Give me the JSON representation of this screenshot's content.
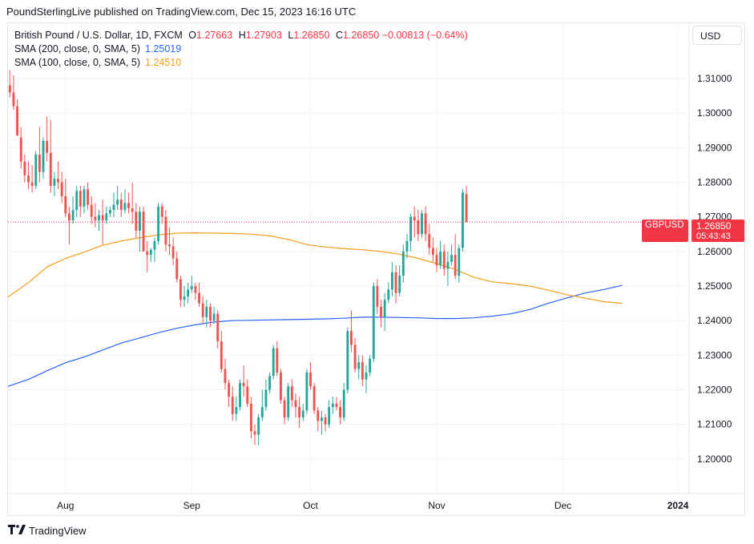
{
  "header": {
    "credit": "PoundSterlingLive published on TradingView.com, Dec 15, 2023 16:16 UTC"
  },
  "legend": {
    "symbol": "British Pound / U.S. Dollar, 1D, FXCM",
    "open_k": "O",
    "open": "1.27663",
    "high_k": "H",
    "high": "1.27903",
    "low_k": "L",
    "low": "1.26850",
    "close_k": "C",
    "close": "1.26850",
    "change": "−0.00813 (−0.64%)",
    "sma200_label": "SMA (200, close, 0, SMA, 5)",
    "sma200_value": "1.25019",
    "sma100_label": "SMA (100, close, 0, SMA, 5)",
    "sma100_value": "1.24510"
  },
  "currency_button": "USD",
  "price_tag": {
    "symbol": "GBPUSD",
    "price": "1.26850",
    "countdown": "05:43:43"
  },
  "footer": {
    "brand": "TradingView",
    "icon": "tradingview-logo-icon"
  },
  "colors": {
    "up": "#26a69a",
    "down": "#ef5350",
    "sma200": "#2962ff",
    "sma100": "#f59c1a",
    "last_price": "#f23645",
    "grid": "#f0f3fa"
  },
  "chart_data": {
    "type": "candlestick",
    "title": "British Pound / U.S. Dollar, 1D, FXCM",
    "ylim": [
      1.19,
      1.326
    ],
    "y_ticks": [
      "1.20000",
      "1.21000",
      "1.22000",
      "1.23000",
      "1.24000",
      "1.25000",
      "1.26000",
      "1.27000",
      "1.28000",
      "1.29000",
      "1.30000",
      "1.31000"
    ],
    "x_ticks": [
      {
        "label": "Aug",
        "index": 15
      },
      {
        "label": "Sep",
        "index": 49
      },
      {
        "label": "Oct",
        "index": 81
      },
      {
        "label": "Nov",
        "index": 115
      },
      {
        "label": "Dec",
        "index": 149
      },
      {
        "label": "2024",
        "index": 180
      }
    ],
    "x_range": [
      -0.5,
      183
    ],
    "last_price": 1.2685,
    "candles": [
      [
        1.308,
        1.3125,
        1.3045,
        1.306
      ],
      [
        1.306,
        1.311,
        1.301,
        1.302
      ],
      [
        1.302,
        1.304,
        1.294,
        1.2935
      ],
      [
        1.293,
        1.296,
        1.284,
        1.286
      ],
      [
        1.286,
        1.288,
        1.28,
        1.282
      ],
      [
        1.282,
        1.286,
        1.278,
        1.28
      ],
      [
        1.28,
        1.285,
        1.277,
        1.279
      ],
      [
        1.279,
        1.289,
        1.278,
        1.288
      ],
      [
        1.288,
        1.296,
        1.28,
        1.283
      ],
      [
        1.283,
        1.293,
        1.281,
        1.292
      ],
      [
        1.292,
        1.299,
        1.286,
        1.2885
      ],
      [
        1.2885,
        1.298,
        1.277,
        1.279
      ],
      [
        1.279,
        1.283,
        1.276,
        1.281
      ],
      [
        1.281,
        1.286,
        1.278,
        1.28
      ],
      [
        1.28,
        1.283,
        1.274,
        1.276
      ],
      [
        1.276,
        1.281,
        1.27,
        1.271
      ],
      [
        1.271,
        1.273,
        1.262,
        1.269
      ],
      [
        1.269,
        1.276,
        1.268,
        1.272
      ],
      [
        1.272,
        1.279,
        1.27,
        1.2775
      ],
      [
        1.2775,
        1.279,
        1.27,
        1.273
      ],
      [
        1.273,
        1.279,
        1.271,
        1.278
      ],
      [
        1.278,
        1.28,
        1.272,
        1.2735
      ],
      [
        1.2735,
        1.276,
        1.268,
        1.27
      ],
      [
        1.27,
        1.274,
        1.267,
        1.269
      ],
      [
        1.269,
        1.272,
        1.266,
        1.2705
      ],
      [
        1.2705,
        1.275,
        1.262,
        1.269
      ],
      [
        1.269,
        1.273,
        1.268,
        1.271
      ],
      [
        1.271,
        1.273,
        1.27,
        1.272
      ],
      [
        1.272,
        1.277,
        1.27,
        1.2735
      ],
      [
        1.2735,
        1.279,
        1.272,
        1.275
      ],
      [
        1.275,
        1.277,
        1.27,
        1.272
      ],
      [
        1.272,
        1.278,
        1.271,
        1.274
      ],
      [
        1.274,
        1.277,
        1.271,
        1.2725
      ],
      [
        1.2725,
        1.28,
        1.268,
        1.2715
      ],
      [
        1.2715,
        1.274,
        1.264,
        1.266
      ],
      [
        1.266,
        1.273,
        1.26,
        1.2715
      ],
      [
        1.2715,
        1.273,
        1.26,
        1.26
      ],
      [
        1.26,
        1.263,
        1.254,
        1.259
      ],
      [
        1.259,
        1.261,
        1.257,
        1.2605
      ],
      [
        1.2605,
        1.264,
        1.257,
        1.263
      ],
      [
        1.263,
        1.274,
        1.262,
        1.273
      ],
      [
        1.273,
        1.274,
        1.268,
        1.27
      ],
      [
        1.27,
        1.272,
        1.26,
        1.262
      ],
      [
        1.262,
        1.267,
        1.259,
        1.2615
      ],
      [
        1.2615,
        1.264,
        1.256,
        1.258
      ],
      [
        1.258,
        1.26,
        1.251,
        1.252
      ],
      [
        1.252,
        1.253,
        1.244,
        1.246
      ],
      [
        1.246,
        1.25,
        1.244,
        1.247
      ],
      [
        1.247,
        1.251,
        1.245,
        1.249
      ],
      [
        1.249,
        1.253,
        1.248,
        1.25
      ],
      [
        1.25,
        1.251,
        1.246,
        1.248
      ],
      [
        1.248,
        1.251,
        1.244,
        1.245
      ],
      [
        1.245,
        1.247,
        1.239,
        1.241
      ],
      [
        1.241,
        1.246,
        1.238,
        1.244
      ],
      [
        1.244,
        1.245,
        1.238,
        1.24
      ],
      [
        1.24,
        1.244,
        1.239,
        1.242
      ],
      [
        1.242,
        1.243,
        1.232,
        1.234
      ],
      [
        1.234,
        1.237,
        1.225,
        1.226
      ],
      [
        1.226,
        1.229,
        1.22,
        1.222
      ],
      [
        1.222,
        1.223,
        1.215,
        1.218
      ],
      [
        1.218,
        1.221,
        1.211,
        1.213
      ],
      [
        1.213,
        1.218,
        1.211,
        1.215
      ],
      [
        1.215,
        1.223,
        1.214,
        1.222
      ],
      [
        1.222,
        1.227,
        1.218,
        1.221
      ],
      [
        1.221,
        1.223,
        1.215,
        1.216
      ],
      [
        1.216,
        1.218,
        1.206,
        1.208
      ],
      [
        1.208,
        1.21,
        1.204,
        1.207
      ],
      [
        1.207,
        1.213,
        1.204,
        1.212
      ],
      [
        1.212,
        1.22,
        1.211,
        1.215
      ],
      [
        1.215,
        1.223,
        1.214,
        1.22
      ],
      [
        1.22,
        1.225,
        1.219,
        1.224
      ],
      [
        1.224,
        1.233,
        1.223,
        1.232
      ],
      [
        1.232,
        1.234,
        1.224,
        1.225
      ],
      [
        1.225,
        1.226,
        1.216,
        1.217
      ],
      [
        1.217,
        1.218,
        1.21,
        1.212
      ],
      [
        1.212,
        1.222,
        1.211,
        1.221
      ],
      [
        1.221,
        1.223,
        1.215,
        1.217
      ],
      [
        1.217,
        1.219,
        1.212,
        1.215
      ],
      [
        1.215,
        1.218,
        1.209,
        1.212
      ],
      [
        1.212,
        1.216,
        1.211,
        1.214
      ],
      [
        1.214,
        1.226,
        1.213,
        1.225
      ],
      [
        1.225,
        1.228,
        1.22,
        1.221
      ],
      [
        1.221,
        1.222,
        1.213,
        1.214
      ],
      [
        1.214,
        1.215,
        1.208,
        1.211
      ],
      [
        1.211,
        1.214,
        1.207,
        1.212
      ],
      [
        1.212,
        1.213,
        1.208,
        1.21
      ],
      [
        1.21,
        1.217,
        1.209,
        1.215
      ],
      [
        1.215,
        1.218,
        1.213,
        1.216
      ],
      [
        1.216,
        1.218,
        1.214,
        1.215
      ],
      [
        1.215,
        1.217,
        1.21,
        1.212
      ],
      [
        1.212,
        1.222,
        1.211,
        1.22
      ],
      [
        1.22,
        1.238,
        1.219,
        1.237
      ],
      [
        1.237,
        1.243,
        1.231,
        1.233
      ],
      [
        1.233,
        1.235,
        1.225,
        1.226
      ],
      [
        1.226,
        1.23,
        1.223,
        1.228
      ],
      [
        1.228,
        1.23,
        1.221,
        1.223
      ],
      [
        1.223,
        1.227,
        1.219,
        1.225
      ],
      [
        1.225,
        1.23,
        1.224,
        1.229
      ],
      [
        1.229,
        1.251,
        1.228,
        1.25
      ],
      [
        1.25,
        1.252,
        1.242,
        1.244
      ],
      [
        1.244,
        1.246,
        1.238,
        1.241
      ],
      [
        1.241,
        1.248,
        1.237,
        1.246
      ],
      [
        1.246,
        1.251,
        1.245,
        1.249
      ],
      [
        1.249,
        1.257,
        1.247,
        1.254
      ],
      [
        1.254,
        1.256,
        1.245,
        1.248
      ],
      [
        1.248,
        1.256,
        1.247,
        1.253
      ],
      [
        1.253,
        1.262,
        1.251,
        1.26
      ],
      [
        1.26,
        1.265,
        1.258,
        1.263
      ],
      [
        1.263,
        1.271,
        1.26,
        1.27
      ],
      [
        1.27,
        1.273,
        1.264,
        1.269
      ],
      [
        1.269,
        1.272,
        1.263,
        1.265
      ],
      [
        1.265,
        1.272,
        1.264,
        1.271
      ],
      [
        1.271,
        1.273,
        1.263,
        1.265
      ],
      [
        1.265,
        1.268,
        1.259,
        1.261
      ],
      [
        1.261,
        1.264,
        1.257,
        1.259
      ],
      [
        1.259,
        1.261,
        1.254,
        1.256
      ],
      [
        1.256,
        1.263,
        1.255,
        1.26
      ],
      [
        1.26,
        1.262,
        1.253,
        1.255
      ],
      [
        1.255,
        1.26,
        1.25,
        1.257
      ],
      [
        1.257,
        1.262,
        1.256,
        1.259
      ],
      [
        1.259,
        1.265,
        1.252,
        1.253
      ],
      [
        1.253,
        1.262,
        1.251,
        1.261
      ],
      [
        1.261,
        1.278,
        1.26,
        1.277
      ],
      [
        1.2766,
        1.279,
        1.2685,
        1.2685
      ]
    ],
    "series": [
      {
        "name": "SMA (200, close, 0, SMA, 5)",
        "value": 1.25019,
        "points": [
          [
            -0.5,
            1.221
          ],
          [
            5,
            1.223
          ],
          [
            10,
            1.2255
          ],
          [
            15,
            1.2278
          ],
          [
            20,
            1.2295
          ],
          [
            25,
            1.2315
          ],
          [
            30,
            1.2335
          ],
          [
            35,
            1.235
          ],
          [
            40,
            1.2365
          ],
          [
            45,
            1.2378
          ],
          [
            50,
            1.2388
          ],
          [
            55,
            1.2396
          ],
          [
            60,
            1.24
          ],
          [
            65,
            1.2401
          ],
          [
            70,
            1.2402
          ],
          [
            75,
            1.2403
          ],
          [
            80,
            1.2404
          ],
          [
            85,
            1.2405
          ],
          [
            90,
            1.2407
          ],
          [
            95,
            1.241
          ],
          [
            100,
            1.241
          ],
          [
            105,
            1.2409
          ],
          [
            110,
            1.2408
          ],
          [
            115,
            1.2406
          ],
          [
            120,
            1.2406
          ],
          [
            125,
            1.2408
          ],
          [
            130,
            1.2413
          ],
          [
            135,
            1.242
          ],
          [
            140,
            1.2432
          ],
          [
            145,
            1.245
          ],
          [
            150,
            1.2465
          ],
          [
            155,
            1.248
          ],
          [
            160,
            1.249
          ],
          [
            165,
            1.2502
          ]
        ]
      },
      {
        "name": "SMA (100, close, 0, SMA, 5)",
        "value": 1.2451,
        "points": [
          [
            -0.5,
            1.2468
          ],
          [
            5,
            1.251
          ],
          [
            10,
            1.2555
          ],
          [
            15,
            1.258
          ],
          [
            20,
            1.2598
          ],
          [
            25,
            1.2618
          ],
          [
            30,
            1.263
          ],
          [
            35,
            1.264
          ],
          [
            40,
            1.2648
          ],
          [
            45,
            1.2653
          ],
          [
            50,
            1.2654
          ],
          [
            55,
            1.2653
          ],
          [
            60,
            1.2652
          ],
          [
            65,
            1.265
          ],
          [
            70,
            1.2645
          ],
          [
            75,
            1.2635
          ],
          [
            80,
            1.262
          ],
          [
            85,
            1.2613
          ],
          [
            90,
            1.2608
          ],
          [
            95,
            1.2605
          ],
          [
            100,
            1.26
          ],
          [
            105,
            1.2592
          ],
          [
            110,
            1.258
          ],
          [
            115,
            1.2565
          ],
          [
            120,
            1.2548
          ],
          [
            125,
            1.2525
          ],
          [
            130,
            1.2512
          ],
          [
            135,
            1.2507
          ],
          [
            140,
            1.25
          ],
          [
            145,
            1.2488
          ],
          [
            150,
            1.2475
          ],
          [
            155,
            1.2465
          ],
          [
            160,
            1.2455
          ],
          [
            165,
            1.245
          ]
        ]
      }
    ]
  }
}
